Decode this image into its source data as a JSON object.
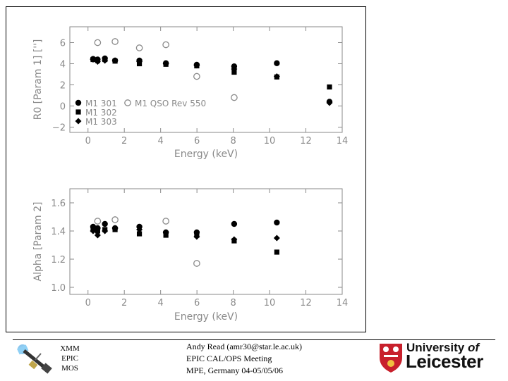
{
  "chart_data": [
    {
      "type": "scatter",
      "ylabel": "R0 [Param 1] ['']",
      "xlabel": "Energy (keV)",
      "xlim": [
        -1,
        14
      ],
      "ylim": [
        -2.5,
        7.5
      ],
      "xticks": [
        0,
        2,
        4,
        6,
        8,
        10,
        12,
        14
      ],
      "yticks": [
        -2,
        0,
        2,
        4,
        6
      ],
      "legend_position": "bottom-left",
      "series": [
        {
          "name": "M1 301",
          "marker": "circle-filled",
          "x": [
            0.28,
            0.53,
            0.93,
            1.49,
            2.83,
            4.29,
            5.99,
            8.05,
            10.4,
            13.3
          ],
          "y": [
            4.45,
            4.4,
            4.5,
            4.3,
            4.3,
            4.05,
            3.9,
            3.75,
            4.05,
            0.4
          ]
        },
        {
          "name": "M1 302",
          "marker": "square-filled",
          "x": [
            0.28,
            0.53,
            0.93,
            1.49,
            2.83,
            4.29,
            5.99,
            8.05,
            10.4,
            13.3
          ],
          "y": [
            4.4,
            4.3,
            4.4,
            4.25,
            4.0,
            3.95,
            3.8,
            3.2,
            2.75,
            1.8
          ]
        },
        {
          "name": "M1 303",
          "marker": "diamond-filled",
          "x": [
            0.28,
            0.53,
            0.93,
            1.49,
            2.83,
            4.29,
            5.99,
            8.05,
            10.4,
            13.3
          ],
          "y": [
            4.4,
            4.2,
            4.3,
            4.3,
            4.2,
            4.0,
            3.85,
            3.5,
            2.8,
            0.3
          ]
        },
        {
          "name": "M1 QSO Rev 550",
          "marker": "circle-open",
          "x": [
            0.53,
            1.49,
            2.83,
            4.29,
            5.99,
            8.05
          ],
          "y": [
            6.0,
            6.1,
            5.5,
            5.8,
            2.8,
            0.8
          ]
        }
      ]
    },
    {
      "type": "scatter",
      "ylabel": "Alpha [Param 2]",
      "xlabel": "Energy (keV)",
      "xlim": [
        -1,
        14
      ],
      "ylim": [
        0.95,
        1.7
      ],
      "xticks": [
        0,
        2,
        4,
        6,
        8,
        10,
        12,
        14
      ],
      "yticks": [
        1.0,
        1.2,
        1.4,
        1.6
      ],
      "series": [
        {
          "name": "M1 301",
          "marker": "circle-filled",
          "x": [
            0.28,
            0.53,
            0.93,
            1.49,
            2.83,
            4.29,
            5.99,
            8.05,
            10.4
          ],
          "y": [
            1.43,
            1.42,
            1.45,
            1.42,
            1.43,
            1.39,
            1.39,
            1.45,
            1.46
          ]
        },
        {
          "name": "M1 302",
          "marker": "square-filled",
          "x": [
            0.28,
            0.53,
            0.93,
            1.49,
            2.83,
            4.29,
            5.99,
            8.05,
            10.4
          ],
          "y": [
            1.41,
            1.4,
            1.41,
            1.41,
            1.38,
            1.37,
            1.37,
            1.33,
            1.25
          ]
        },
        {
          "name": "M1 303",
          "marker": "diamond-filled",
          "x": [
            0.28,
            0.53,
            0.93,
            1.49,
            2.83,
            4.29,
            5.99,
            8.05,
            10.4
          ],
          "y": [
            1.4,
            1.37,
            1.4,
            1.42,
            1.41,
            1.39,
            1.36,
            1.34,
            1.35
          ]
        },
        {
          "name": "M1 QSO Rev 550",
          "marker": "circle-open",
          "x": [
            0.53,
            1.49,
            4.29,
            5.99
          ],
          "y": [
            1.47,
            1.48,
            1.47,
            1.17
          ]
        }
      ]
    }
  ],
  "footer": {
    "xmm": [
      "XMM",
      "EPIC",
      "MOS"
    ],
    "author_lines": [
      "Andy Read (amr30@star.le.ac.uk)",
      "EPIC CAL/OPS Meeting",
      "MPE, Germany 04-05/05/06"
    ],
    "university_line1_prefix": "University ",
    "university_line1_of": "of",
    "university_line2": "Leicester",
    "colors": {
      "shield_red": "#c8202c",
      "marker": "#000000",
      "axis": "#8a8a8a"
    }
  }
}
